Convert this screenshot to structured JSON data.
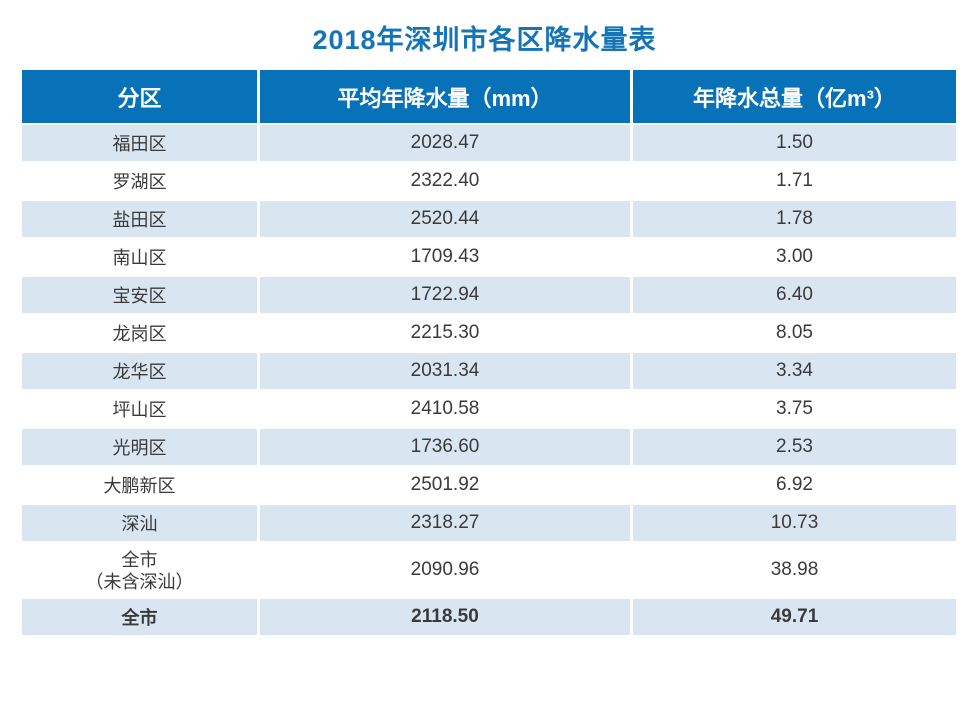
{
  "title": "2018年深圳市各区降水量表",
  "colors": {
    "header_bg": "#0772B8",
    "row_shaded_bg": "#D9E6F2",
    "row_plain_bg": "#FFFFFF",
    "title_color": "#1474B6",
    "header_text": "#FFFFFF",
    "body_text": "#3A3A3A"
  },
  "table": {
    "headers": [
      "分区",
      "平均年降水量（mm）",
      "年降水总量（亿m³）"
    ],
    "rows": [
      {
        "district": "福田区",
        "avg_mm": "2028.47",
        "total_yi_m3": "1.50",
        "shaded": true
      },
      {
        "district": "罗湖区",
        "avg_mm": "2322.40",
        "total_yi_m3": "1.71",
        "shaded": false
      },
      {
        "district": "盐田区",
        "avg_mm": "2520.44",
        "total_yi_m3": "1.78",
        "shaded": true
      },
      {
        "district": "南山区",
        "avg_mm": "1709.43",
        "total_yi_m3": "3.00",
        "shaded": false
      },
      {
        "district": "宝安区",
        "avg_mm": "1722.94",
        "total_yi_m3": "6.40",
        "shaded": true
      },
      {
        "district": "龙岗区",
        "avg_mm": "2215.30",
        "total_yi_m3": "8.05",
        "shaded": false
      },
      {
        "district": "龙华区",
        "avg_mm": "2031.34",
        "total_yi_m3": "3.34",
        "shaded": true
      },
      {
        "district": "坪山区",
        "avg_mm": "2410.58",
        "total_yi_m3": "3.75",
        "shaded": false
      },
      {
        "district": "光明区",
        "avg_mm": "1736.60",
        "total_yi_m3": "2.53",
        "shaded": true
      },
      {
        "district": "大鹏新区",
        "avg_mm": "2501.92",
        "total_yi_m3": "6.92",
        "shaded": false
      },
      {
        "district": "深汕",
        "avg_mm": "2318.27",
        "total_yi_m3": "10.73",
        "shaded": true
      },
      {
        "district": "全市",
        "district_note": "（未含深汕）",
        "avg_mm": "2090.96",
        "total_yi_m3": "38.98",
        "shaded": false,
        "tall": true
      },
      {
        "district": "全市",
        "avg_mm": "2118.50",
        "total_yi_m3": "49.71",
        "shaded": true,
        "bold": true
      }
    ]
  },
  "chart_data": {
    "type": "table",
    "title": "2018年深圳市各区降水量表",
    "columns": [
      "分区",
      "平均年降水量（mm）",
      "年降水总量（亿m³）"
    ],
    "rows": [
      [
        "福田区",
        2028.47,
        1.5
      ],
      [
        "罗湖区",
        2322.4,
        1.71
      ],
      [
        "盐田区",
        2520.44,
        1.78
      ],
      [
        "南山区",
        1709.43,
        3.0
      ],
      [
        "宝安区",
        1722.94,
        6.4
      ],
      [
        "龙岗区",
        2215.3,
        8.05
      ],
      [
        "龙华区",
        2031.34,
        3.34
      ],
      [
        "坪山区",
        2410.58,
        3.75
      ],
      [
        "光明区",
        1736.6,
        2.53
      ],
      [
        "大鹏新区",
        2501.92,
        6.92
      ],
      [
        "深汕",
        2318.27,
        10.73
      ],
      [
        "全市（未含深汕）",
        2090.96,
        38.98
      ],
      [
        "全市",
        2118.5,
        49.71
      ]
    ]
  }
}
